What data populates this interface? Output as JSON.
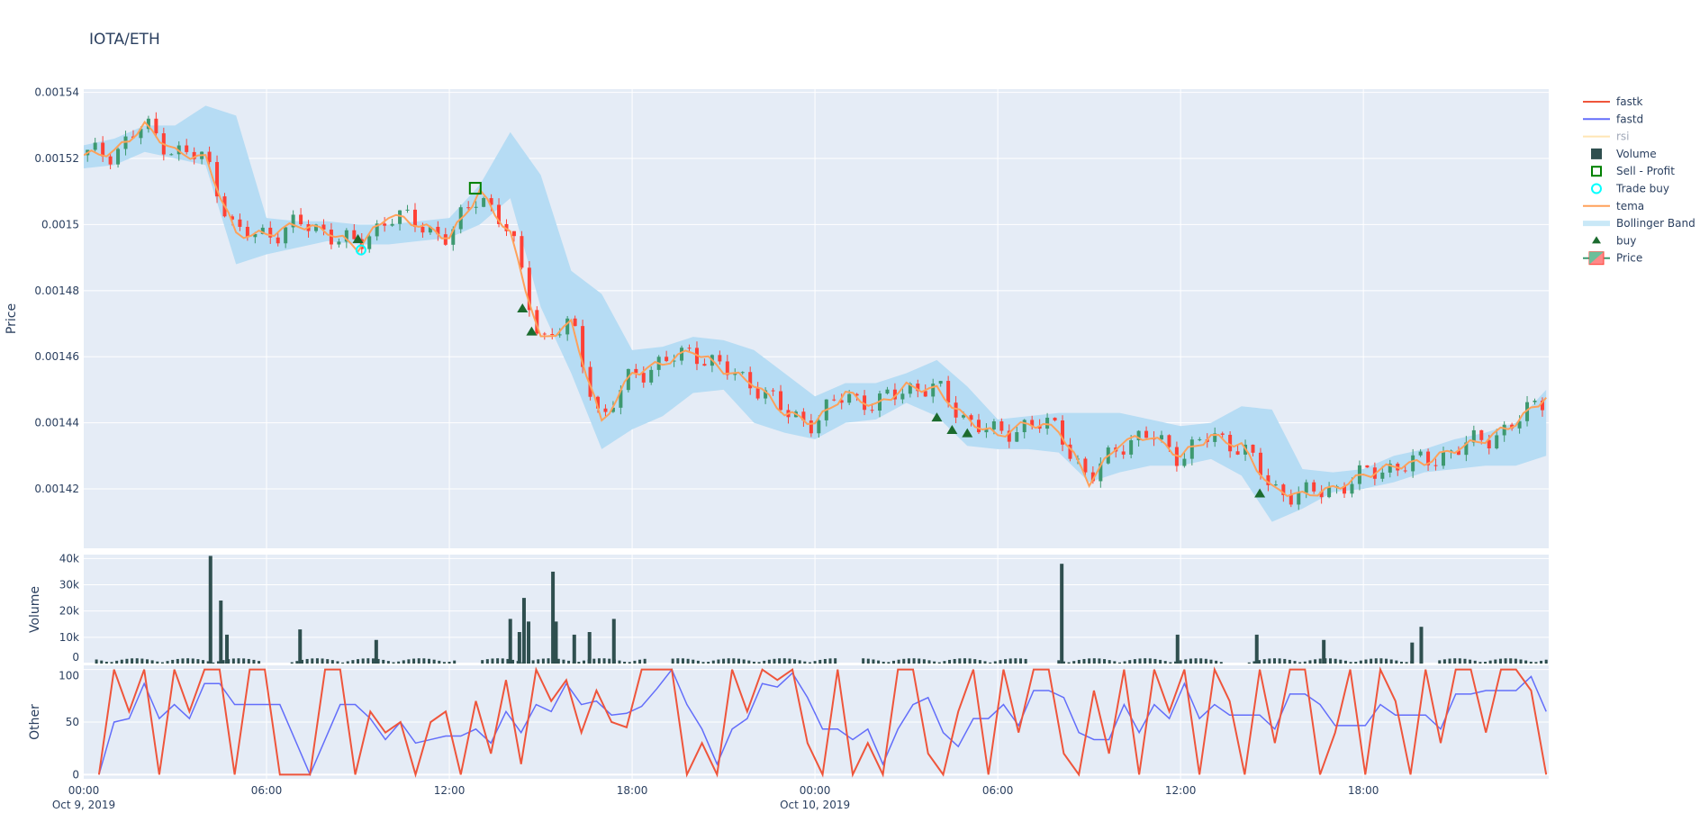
{
  "title": "IOTA/ETH",
  "colors": {
    "background": "#e5ecf6",
    "increasing": "#3d9970",
    "decreasing": "#ff4136",
    "tema": "#ffa15a",
    "bollinger": "#b6dcf4",
    "volume": "#2f4f4f",
    "fastk": "#ef553b",
    "fastd": "#636efa",
    "rsi": "#ffe5b4",
    "buy": "#1b6b2e",
    "sell_profit": "#008000",
    "trade_buy": "#00ffff"
  },
  "legend": [
    {
      "label": "fastk",
      "icon": "line",
      "color": "#ef553b"
    },
    {
      "label": "fastd",
      "icon": "line",
      "color": "#636efa"
    },
    {
      "label": "rsi",
      "icon": "line",
      "color": "#ffe5b4",
      "hidden": true
    },
    {
      "label": "Volume",
      "icon": "square-filled",
      "color": "#2f4f4f"
    },
    {
      "label": "Sell - Profit",
      "icon": "square-open",
      "color": "#008000"
    },
    {
      "label": "Trade buy",
      "icon": "circle-open",
      "color": "#00ffff"
    },
    {
      "label": "tema",
      "icon": "line",
      "color": "#ffa15a"
    },
    {
      "label": "Bollinger Band",
      "icon": "band",
      "color": "#c9e8f7"
    },
    {
      "label": "buy",
      "icon": "triangle-up",
      "color": "#1b6b2e"
    },
    {
      "label": "Price",
      "icon": "candlestick",
      "color": "#3d9970"
    }
  ],
  "chart_data": [
    {
      "type": "candlestick",
      "ylabel": "Price",
      "ylim": [
        0.001402,
        0.001541
      ],
      "yticks": [
        "0.00154",
        "0.00152",
        "0.0015",
        "0.00148",
        "0.00146",
        "0.00144",
        "0.00142"
      ],
      "ytick_values": [
        0.00154,
        0.00152,
        0.0015,
        0.00148,
        0.00146,
        0.00144,
        0.00142
      ],
      "xaxis": {
        "range": [
          "Oct 9, 2019 00:00",
          "Oct 11, 2019 00:05"
        ],
        "ticks": [
          "00:00",
          "06:00",
          "12:00",
          "18:00",
          "00:00",
          "06:00",
          "12:00",
          "18:00"
        ],
        "tick_hours": [
          0,
          6,
          12,
          18,
          24,
          30,
          36,
          42
        ],
        "date_labels": {
          "0": "Oct 9, 2019",
          "4": "Oct 10, 2019"
        }
      },
      "grid": true,
      "hourly_tema": [
        0.001521,
        0.001522,
        0.00153,
        0.001522,
        0.00152,
        0.001497,
        0.001497,
        0.0015,
        0.001498,
        0.001493,
        0.001503,
        0.0015,
        0.001496,
        0.00151,
        0.001497,
        0.001465,
        0.00147,
        0.00144,
        0.001455,
        0.001458,
        0.001462,
        0.001456,
        0.001452,
        0.001443,
        0.00144,
        0.001449,
        0.001445,
        0.001451,
        0.00145,
        0.001441,
        0.001436,
        0.00144,
        0.001438,
        0.001422,
        0.001434,
        0.001436,
        0.00143,
        0.001436,
        0.001433,
        0.00142,
        0.001418,
        0.00142,
        0.001424,
        0.001427,
        0.001428,
        0.001432,
        0.001435,
        0.00144,
        0.001448
      ],
      "bollinger_upper": [
        0.001524,
        0.001526,
        0.00153,
        0.00153,
        0.001536,
        0.001533,
        0.001502,
        0.001501,
        0.001501,
        0.0015,
        0.0015,
        0.001501,
        0.001502,
        0.001512,
        0.001528,
        0.001515,
        0.001486,
        0.001479,
        0.001462,
        0.001463,
        0.001466,
        0.001465,
        0.001462,
        0.001455,
        0.001448,
        0.001452,
        0.001452,
        0.001455,
        0.001459,
        0.001451,
        0.001441,
        0.001442,
        0.001443,
        0.001443,
        0.001443,
        0.001441,
        0.001439,
        0.00144,
        0.001445,
        0.001444,
        0.001426,
        0.001425,
        0.001426,
        0.00143,
        0.001432,
        0.001435,
        0.001437,
        0.00144,
        0.00145
      ],
      "bollinger_lower": [
        0.001517,
        0.001518,
        0.001522,
        0.00152,
        0.001518,
        0.001488,
        0.001491,
        0.001493,
        0.001495,
        0.001494,
        0.001494,
        0.001495,
        0.001496,
        0.0015,
        0.001508,
        0.001475,
        0.001455,
        0.001432,
        0.001438,
        0.001442,
        0.001449,
        0.00145,
        0.00144,
        0.001437,
        0.001435,
        0.00144,
        0.001441,
        0.001446,
        0.001442,
        0.001433,
        0.001432,
        0.001432,
        0.001431,
        0.001422,
        0.001425,
        0.001427,
        0.001427,
        0.001429,
        0.001424,
        0.00141,
        0.001414,
        0.001419,
        0.00142,
        0.001422,
        0.001425,
        0.001426,
        0.001427,
        0.001427,
        0.00143
      ],
      "buy_markers": [
        [
          9.0,
          0.0014955
        ],
        [
          14.4,
          0.0014745
        ],
        [
          14.7,
          0.0014675
        ],
        [
          28.0,
          0.0014415
        ],
        [
          28.5,
          0.0014377
        ],
        [
          29.0,
          0.0014367
        ],
        [
          38.6,
          0.0014185
        ]
      ],
      "trade_buy": [
        [
          9.1,
          0.0014923
        ]
      ],
      "sell_profit": [
        [
          12.85,
          0.001511
        ]
      ]
    },
    {
      "type": "bar",
      "ylabel": "Volume",
      "ylim": [
        0,
        41500
      ],
      "yticks": [
        "0",
        "10k",
        "20k",
        "30k",
        "40k"
      ],
      "ytick_values": [
        0,
        10000,
        20000,
        30000,
        40000
      ],
      "spikes": [
        [
          4.16,
          41000
        ],
        [
          4.5,
          24000
        ],
        [
          4.7,
          11000
        ],
        [
          7.1,
          13000
        ],
        [
          9.6,
          9000
        ],
        [
          14.0,
          17000
        ],
        [
          14.3,
          12000
        ],
        [
          14.45,
          25000
        ],
        [
          14.6,
          16000
        ],
        [
          15.4,
          35000
        ],
        [
          15.5,
          16000
        ],
        [
          16.1,
          11000
        ],
        [
          16.6,
          12000
        ],
        [
          17.4,
          17000
        ],
        [
          32.1,
          38000
        ],
        [
          35.9,
          11000
        ],
        [
          38.5,
          11000
        ],
        [
          40.7,
          9000
        ],
        [
          43.6,
          8000
        ],
        [
          43.9,
          14000
        ]
      ]
    },
    {
      "type": "line",
      "ylabel": "Other",
      "ylim": [
        -4,
        104
      ],
      "yticks": [
        "0",
        "50",
        "100"
      ],
      "ytick_values": [
        0,
        50,
        100
      ],
      "interval": "30min",
      "start": "Oct 9, 2019 00:30",
      "fastk": [
        0,
        100,
        60,
        100,
        0,
        100,
        60,
        100,
        100,
        0,
        100,
        100,
        0,
        0,
        0,
        100,
        100,
        0,
        60,
        40,
        50,
        0,
        50,
        60,
        0,
        70,
        20,
        90,
        10,
        100,
        70,
        90,
        40,
        80,
        50,
        45,
        100,
        100,
        100,
        0,
        30,
        0,
        100,
        60,
        100,
        90,
        100,
        30,
        0,
        100,
        0,
        30,
        0,
        100,
        100,
        20,
        0,
        60,
        100,
        0,
        100,
        40,
        100,
        100,
        20,
        0,
        80,
        20,
        100,
        0,
        100,
        60,
        100,
        0,
        100,
        70,
        0,
        100,
        30,
        100,
        100,
        0,
        40,
        100,
        0,
        100,
        70,
        0,
        100,
        30,
        100,
        100,
        40,
        100,
        100,
        80,
        0
      ]
    }
  ]
}
